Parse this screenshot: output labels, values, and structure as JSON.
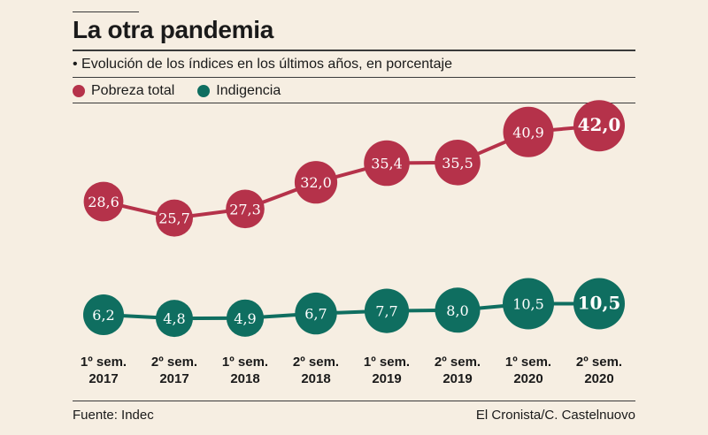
{
  "title": "La otra pandemia",
  "subtitle": "• Evolución de los índices en los últimos años, en porcentaje",
  "legend": [
    {
      "label": "Pobreza total",
      "color": "#b5324a"
    },
    {
      "label": "Indigencia",
      "color": "#0f6e60"
    }
  ],
  "chart_data": {
    "type": "line",
    "title": "La otra pandemia",
    "subtitle": "Evolución de los índices en los últimos años, en porcentaje",
    "categories": [
      [
        "1º sem.",
        "2017"
      ],
      [
        "2º sem.",
        "2017"
      ],
      [
        "1º sem.",
        "2018"
      ],
      [
        "2º sem.",
        "2018"
      ],
      [
        "1º sem.",
        "2019"
      ],
      [
        "2º sem.",
        "2019"
      ],
      [
        "1º sem.",
        "2020"
      ],
      [
        "2º sem.",
        "2020"
      ]
    ],
    "series": [
      {
        "name": "Pobreza total",
        "color": "#b5324a",
        "values": [
          28.6,
          25.7,
          27.3,
          32.0,
          35.4,
          35.5,
          40.9,
          42.0
        ],
        "labels": [
          "28,6",
          "25,7",
          "27,3",
          "32,0",
          "35,4",
          "35,5",
          "40,9",
          "42,0"
        ]
      },
      {
        "name": "Indigencia",
        "color": "#0f6e60",
        "values": [
          6.2,
          4.8,
          4.9,
          6.7,
          7.7,
          8.0,
          10.5,
          10.5
        ],
        "labels": [
          "6,2",
          "4,8",
          "4,9",
          "6,7",
          "7,7",
          "8,0",
          "10,5",
          "10,5"
        ]
      }
    ],
    "xlabel": "",
    "ylabel": "",
    "grid": false
  },
  "footer": {
    "source": "Fuente: Indec",
    "credit": "El Cronista/C. Castelnuovo"
  }
}
